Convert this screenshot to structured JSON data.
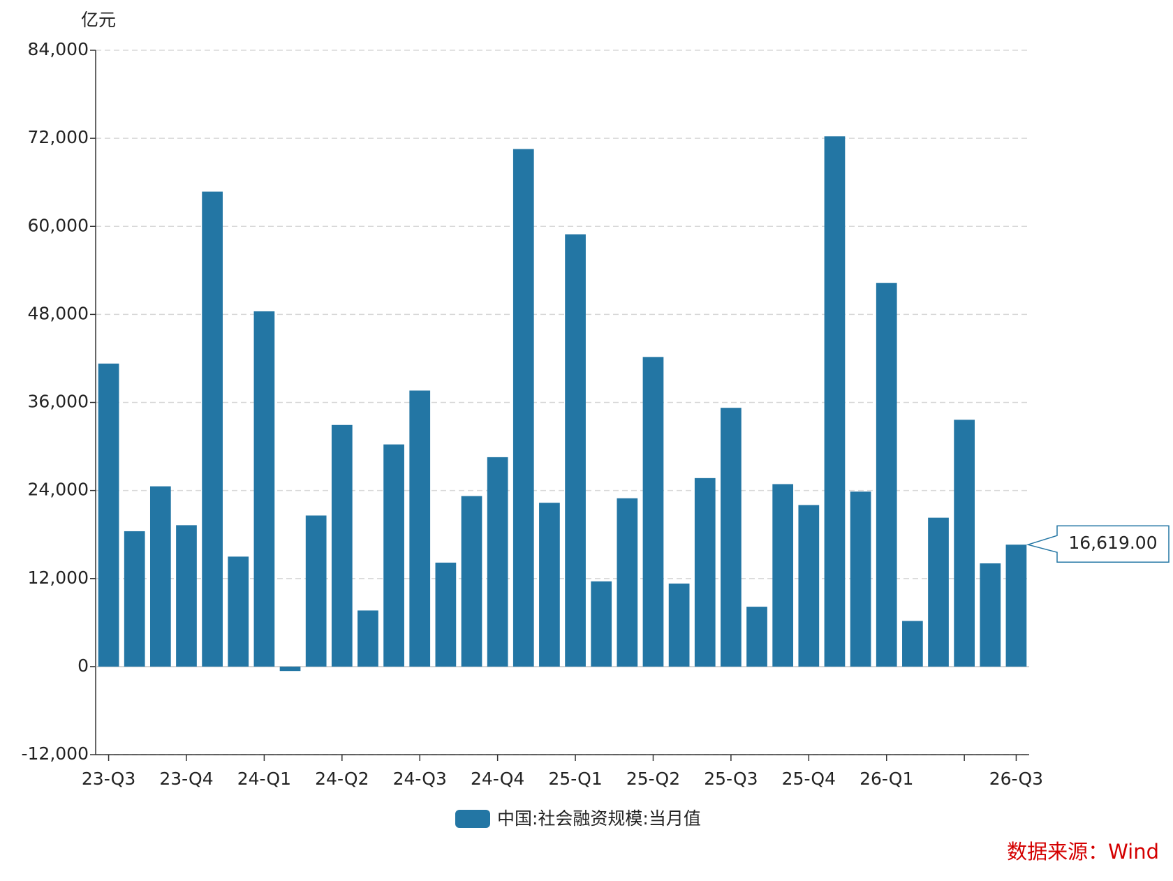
{
  "chart_data": {
    "type": "bar",
    "y_unit": "亿元",
    "source": "数据来源：Wind",
    "categories": [
      "23-Q3",
      null,
      null,
      "23-Q4",
      null,
      null,
      "24-Q1",
      null,
      null,
      "24-Q2",
      null,
      null,
      "24-Q3",
      null,
      null,
      "24-Q4",
      null,
      null,
      "25-Q1",
      null,
      null,
      "25-Q2",
      null,
      null,
      "25-Q3",
      null,
      null,
      "25-Q4",
      null,
      null,
      "26-Q1",
      null,
      null,
      null,
      null,
      "26-Q3"
    ],
    "series": [
      {
        "name": "中国:社会融资规模:当月值",
        "color": "#2376a4",
        "values": [
          41300,
          18450,
          24570,
          19270,
          64730,
          14990,
          48420,
          -600,
          20590,
          32930,
          7650,
          30280,
          37620,
          14170,
          23240,
          28540,
          70540,
          22330,
          58920,
          11620,
          22940,
          42200,
          11320,
          25690,
          35270,
          8160,
          24870,
          22020,
          72270,
          23850,
          52300,
          6220,
          20290,
          33640,
          14070,
          16619
        ],
        "value_labels": [
          null,
          null,
          null,
          null,
          null,
          null,
          null,
          null,
          null,
          null,
          null,
          null,
          null,
          null,
          null,
          null,
          null,
          null,
          null,
          null,
          null,
          null,
          null,
          null,
          null,
          null,
          null,
          null,
          null,
          null,
          null,
          null,
          null,
          null,
          null,
          "16,619.00"
        ]
      }
    ],
    "ylim": [
      -12000,
      84000
    ],
    "yticks": [
      {
        "value": -12000,
        "label": "-12,000"
      },
      0,
      {
        "value": 12000,
        "label": "12,000"
      },
      {
        "value": 24000,
        "label": "24,000"
      },
      {
        "value": 36000,
        "label": "36,000"
      },
      {
        "value": 48000,
        "label": "48,000"
      },
      {
        "value": 60000,
        "label": "60,000"
      },
      {
        "value": 72000,
        "label": "72,000"
      },
      {
        "value": 84000,
        "label": "84,000"
      }
    ],
    "grid": true
  }
}
